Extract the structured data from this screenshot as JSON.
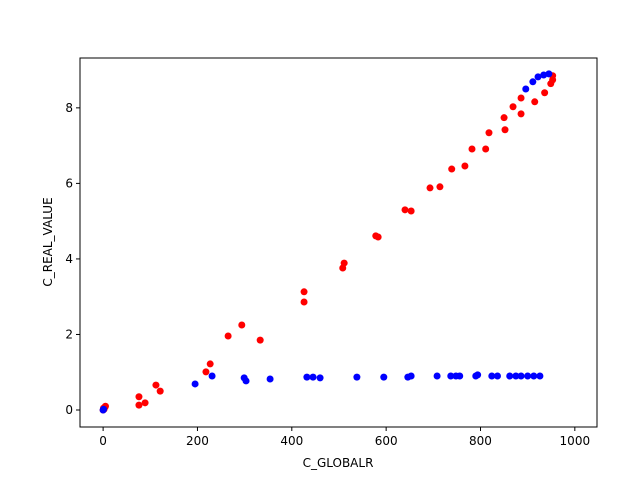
{
  "chart_data": {
    "type": "scatter",
    "xlabel": "C_GLOBALR",
    "ylabel": "C_REAL_VALUE",
    "xlim": [
      -49,
      1047
    ],
    "ylim": [
      -0.45,
      9.32
    ],
    "xticks": [
      0,
      200,
      400,
      600,
      800,
      1000
    ],
    "yticks": [
      0,
      2,
      4,
      6,
      8
    ],
    "series": [
      {
        "color": "#ff0000",
        "x": [
          0,
          1,
          2,
          4,
          5,
          76,
          76,
          89,
          112,
          121,
          218,
          227,
          265,
          294,
          333,
          426,
          426,
          508,
          511,
          578,
          583,
          640,
          653,
          693,
          714,
          739,
          767,
          782,
          811,
          818,
          852,
          850,
          869,
          886,
          886,
          915,
          936,
          949,
          953,
          953
        ],
        "values": [
          0.0,
          0.05,
          0.02,
          0.08,
          0.1,
          0.35,
          0.13,
          0.19,
          0.66,
          0.5,
          1.01,
          1.22,
          1.96,
          2.25,
          1.85,
          3.13,
          2.86,
          3.76,
          3.89,
          4.61,
          4.58,
          5.3,
          5.27,
          5.88,
          5.91,
          6.38,
          6.46,
          6.91,
          6.91,
          7.34,
          7.42,
          7.74,
          8.03,
          7.84,
          8.26,
          8.16,
          8.4,
          8.64,
          8.74,
          8.85
        ]
      },
      {
        "color": "#0000ff",
        "x": [
          0,
          1,
          195,
          231,
          299,
          303,
          354,
          432,
          445,
          460,
          538,
          595,
          646,
          653,
          708,
          737,
          748,
          756,
          790,
          794,
          824,
          836,
          862,
          875,
          886,
          900,
          913,
          926,
          896,
          911,
          922,
          934,
          945
        ],
        "values": [
          0.0,
          0.02,
          0.69,
          0.9,
          0.85,
          0.77,
          0.82,
          0.87,
          0.87,
          0.85,
          0.87,
          0.87,
          0.87,
          0.9,
          0.9,
          0.9,
          0.9,
          0.9,
          0.9,
          0.93,
          0.9,
          0.9,
          0.9,
          0.9,
          0.9,
          0.9,
          0.9,
          0.9,
          8.5,
          8.69,
          8.82,
          8.87,
          8.9
        ]
      }
    ]
  }
}
